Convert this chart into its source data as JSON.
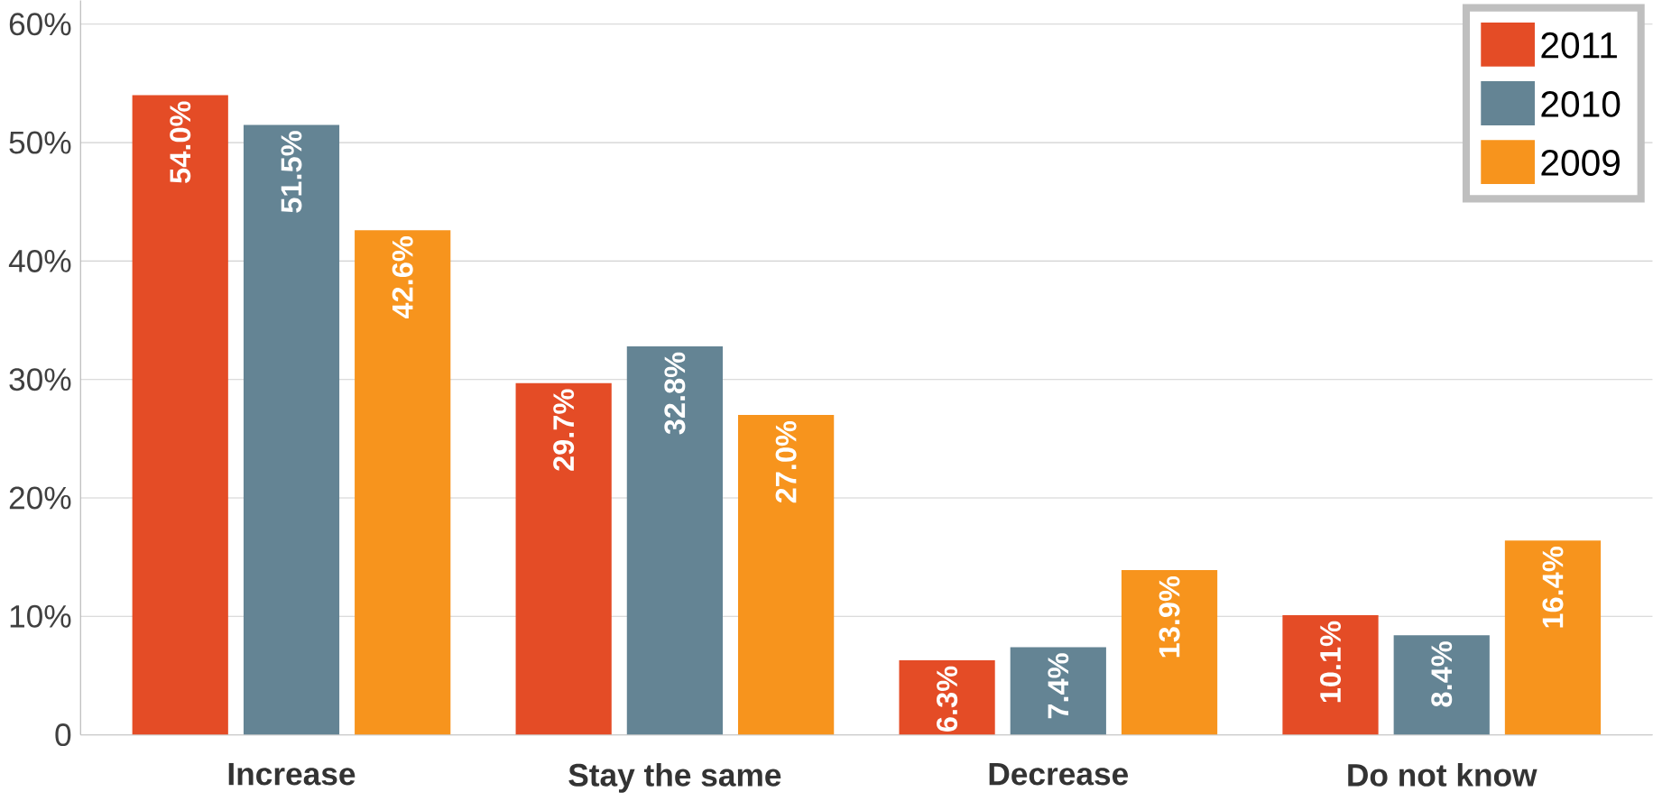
{
  "chart_data": {
    "type": "bar",
    "categories": [
      "Increase",
      "Stay the same",
      "Decrease",
      "Do not know"
    ],
    "series": [
      {
        "name": "2011",
        "color": "#e44c26",
        "values": [
          54.0,
          29.7,
          6.3,
          10.1
        ],
        "value_labels": [
          "54.0%",
          "29.7%",
          "6.3%",
          "10.1%"
        ]
      },
      {
        "name": "2010",
        "color": "#648494",
        "values": [
          51.5,
          32.8,
          7.4,
          8.4
        ],
        "value_labels": [
          "51.5%",
          "32.8%",
          "7.4%",
          "8.4%"
        ]
      },
      {
        "name": "2009",
        "color": "#f7941d",
        "values": [
          42.6,
          27.0,
          13.9,
          16.4
        ],
        "value_labels": [
          "42.6%",
          "27.0%",
          "13.9%",
          "16.4%"
        ]
      }
    ],
    "ylim": [
      0,
      62
    ],
    "yticks": [
      {
        "value": 0,
        "label": "0"
      },
      {
        "value": 10,
        "label": "10%"
      },
      {
        "value": 20,
        "label": "20%"
      },
      {
        "value": 30,
        "label": "30%"
      },
      {
        "value": 40,
        "label": "40%"
      },
      {
        "value": 50,
        "label": "50%"
      },
      {
        "value": 60,
        "label": "60%"
      }
    ],
    "grid": "y",
    "legend": "top right"
  }
}
